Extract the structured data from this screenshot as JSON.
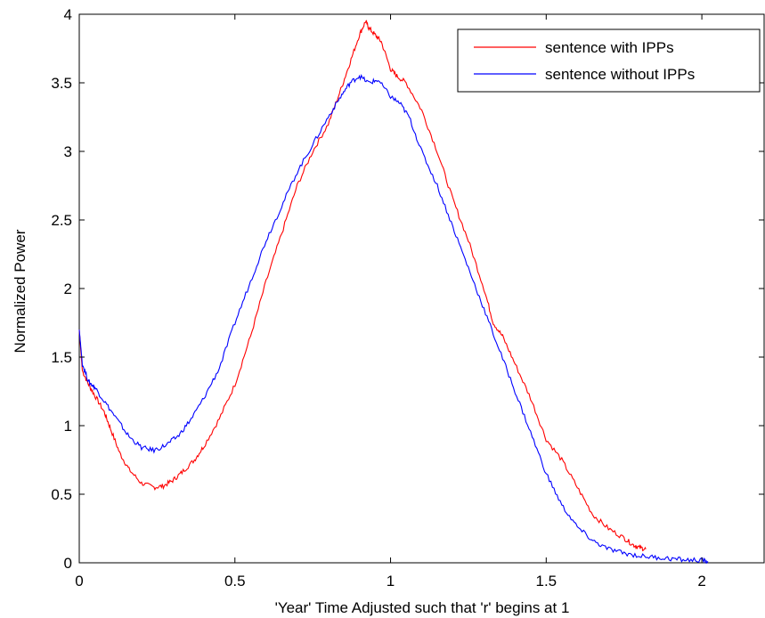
{
  "chart_data": {
    "type": "line",
    "title": "",
    "xlabel": "'Year' Time Adjusted such that 'r' begins at 1",
    "ylabel": "Normalized Power",
    "xlim": [
      0,
      2.2
    ],
    "ylim": [
      0,
      4
    ],
    "xticks": [
      0,
      0.5,
      1,
      1.5,
      2
    ],
    "xtick_labels": [
      "0",
      "0.5",
      "1",
      "1.5",
      "2"
    ],
    "yticks": [
      0,
      0.5,
      1,
      1.5,
      2,
      2.5,
      3,
      3.5,
      4
    ],
    "ytick_labels": [
      "0",
      "0.5",
      "1",
      "1.5",
      "2",
      "2.5",
      "3",
      "3.5",
      "4"
    ],
    "grid": false,
    "legend_position": "top-right",
    "series": [
      {
        "name": "sentence with IPPs",
        "color": "#ff0000",
        "x": [
          0,
          0.01,
          0.03,
          0.05,
          0.08,
          0.1,
          0.13,
          0.16,
          0.2,
          0.24,
          0.27,
          0.3,
          0.33,
          0.37,
          0.4,
          0.45,
          0.5,
          0.55,
          0.6,
          0.65,
          0.7,
          0.75,
          0.8,
          0.84,
          0.87,
          0.9,
          0.92,
          0.93,
          0.95,
          0.97,
          1.0,
          1.02,
          1.05,
          1.1,
          1.15,
          1.2,
          1.25,
          1.3,
          1.33,
          1.36,
          1.4,
          1.45,
          1.5,
          1.55,
          1.6,
          1.65,
          1.7,
          1.75,
          1.78,
          1.8,
          1.82
        ],
        "y": [
          1.7,
          1.4,
          1.3,
          1.22,
          1.1,
          0.98,
          0.8,
          0.68,
          0.58,
          0.55,
          0.56,
          0.6,
          0.66,
          0.75,
          0.85,
          1.05,
          1.3,
          1.65,
          2.05,
          2.4,
          2.75,
          3.0,
          3.2,
          3.45,
          3.65,
          3.85,
          3.95,
          3.9,
          3.85,
          3.8,
          3.6,
          3.55,
          3.5,
          3.3,
          3.0,
          2.65,
          2.35,
          2.0,
          1.75,
          1.65,
          1.45,
          1.2,
          0.9,
          0.75,
          0.55,
          0.35,
          0.25,
          0.18,
          0.13,
          0.11,
          0.1
        ]
      },
      {
        "name": "sentence without IPPs",
        "color": "#0000ff",
        "x": [
          0,
          0.01,
          0.03,
          0.05,
          0.08,
          0.12,
          0.16,
          0.2,
          0.24,
          0.28,
          0.32,
          0.36,
          0.4,
          0.45,
          0.5,
          0.55,
          0.6,
          0.65,
          0.7,
          0.75,
          0.8,
          0.84,
          0.87,
          0.9,
          0.93,
          0.96,
          1.0,
          1.03,
          1.06,
          1.1,
          1.15,
          1.2,
          1.25,
          1.3,
          1.35,
          1.4,
          1.45,
          1.5,
          1.55,
          1.6,
          1.65,
          1.7,
          1.75,
          1.8,
          1.85,
          1.9,
          1.95,
          2.0,
          2.02
        ],
        "y": [
          1.7,
          1.45,
          1.32,
          1.28,
          1.18,
          1.05,
          0.92,
          0.84,
          0.82,
          0.86,
          0.93,
          1.05,
          1.2,
          1.42,
          1.75,
          2.05,
          2.35,
          2.6,
          2.85,
          3.05,
          3.25,
          3.4,
          3.5,
          3.55,
          3.5,
          3.52,
          3.4,
          3.35,
          3.25,
          3.0,
          2.75,
          2.45,
          2.15,
          1.85,
          1.55,
          1.25,
          0.95,
          0.65,
          0.42,
          0.26,
          0.16,
          0.1,
          0.07,
          0.05,
          0.04,
          0.03,
          0.02,
          0.02,
          0.01
        ]
      }
    ]
  }
}
